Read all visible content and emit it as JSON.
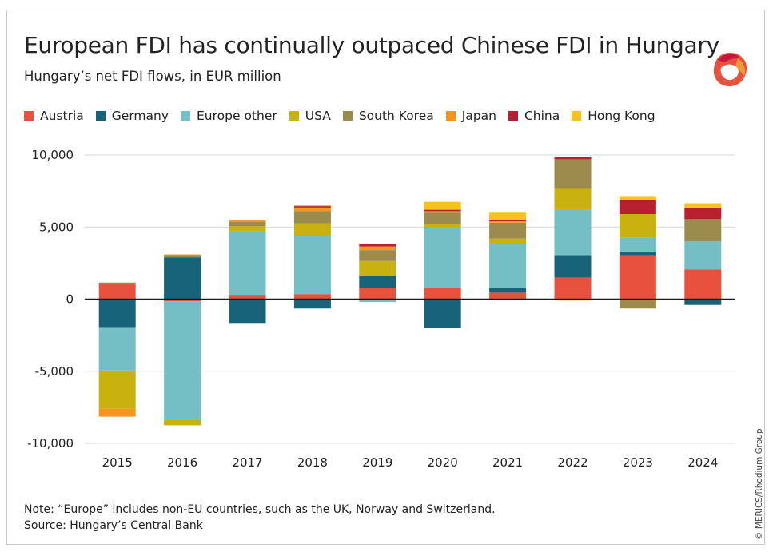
{
  "title": "European FDI has continually outpaced Chinese FDI in Hungary",
  "subtitle": "Hungary’s net FDI flows, in EUR million",
  "note": "Note: “Europe” includes non-EU countries, such as the UK, Norway and Switzerland.",
  "source": "Source: Hungary’s Central Bank",
  "credit": "© MERICS/Rhodium Group",
  "logo_icon": "merics-logo-icon",
  "chart_data": {
    "type": "bar",
    "stacked": true,
    "title": "European FDI has continually outpaced Chinese FDI in Hungary",
    "ylabel": "Hungary’s net FDI flows, in EUR million",
    "xlabel": "",
    "categories": [
      "2015",
      "2016",
      "2017",
      "2018",
      "2019",
      "2020",
      "2021",
      "2022",
      "2023",
      "2024"
    ],
    "ylim": [
      -10000,
      10000
    ],
    "yticks": [
      10000,
      5000,
      0,
      -5000,
      -10000
    ],
    "ytick_labels": [
      "10,000",
      "5,000",
      "0",
      "-5,000",
      "-10,000"
    ],
    "legend_position": "top",
    "series": [
      {
        "name": "Austria",
        "color": "#e8513e",
        "values": [
          1050,
          -150,
          300,
          350,
          750,
          800,
          450,
          1500,
          3050,
          2050
        ]
      },
      {
        "name": "Germany",
        "color": "#17637a",
        "values": [
          -1950,
          2900,
          -1650,
          -650,
          850,
          -2000,
          300,
          1550,
          250,
          -400
        ]
      },
      {
        "name": "Europe other",
        "color": "#74bfc5",
        "values": [
          -3000,
          -8150,
          4400,
          4050,
          -200,
          4150,
          3100,
          3150,
          950,
          1950
        ]
      },
      {
        "name": "USA",
        "color": "#c9b10e",
        "values": [
          -2650,
          -450,
          350,
          850,
          1050,
          250,
          350,
          1500,
          1650,
          0
        ]
      },
      {
        "name": "South Korea",
        "color": "#9b8b4c",
        "values": [
          100,
          150,
          300,
          850,
          750,
          800,
          1100,
          2000,
          -650,
          1550
        ]
      },
      {
        "name": "Japan",
        "color": "#f5951f",
        "values": [
          -550,
          50,
          100,
          250,
          250,
          100,
          100,
          0,
          0,
          0
        ]
      },
      {
        "name": "China",
        "color": "#b8202f",
        "values": [
          0,
          0,
          50,
          100,
          150,
          100,
          100,
          150,
          1000,
          800
        ]
      },
      {
        "name": "Hong Kong",
        "color": "#f7c31b",
        "values": [
          0,
          0,
          0,
          100,
          0,
          550,
          500,
          -100,
          250,
          300
        ]
      }
    ]
  }
}
